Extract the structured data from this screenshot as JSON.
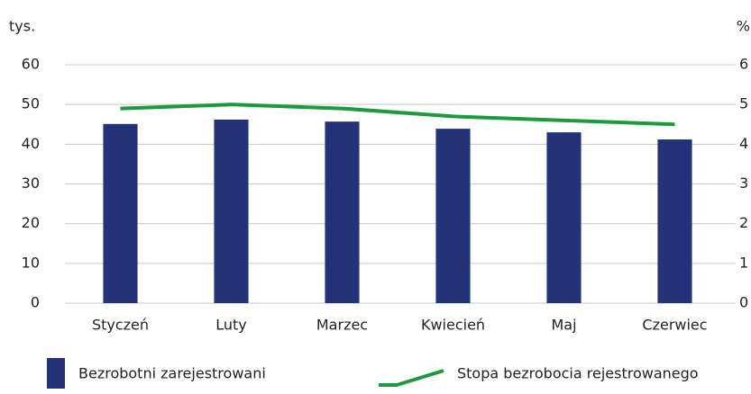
{
  "chart_data": {
    "type": "bar_line",
    "y_unit_label": "tys.",
    "y2_unit_label": "%",
    "categories": [
      "Styczeń",
      "Luty",
      "Marzec",
      "Kwiecień",
      "Maj",
      "Czerwiec"
    ],
    "series": [
      {
        "name": "Bezrobotni zarejestrowani",
        "type": "bar",
        "color": "#243378",
        "values": [
          45.1,
          46.2,
          45.7,
          43.9,
          43.0,
          41.2
        ]
      },
      {
        "name": "Stopa bezrobocia rejestrowanego",
        "type": "line",
        "axis": "y2",
        "color": "#1e9a3e",
        "values": [
          4.9,
          5.0,
          4.9,
          4.7,
          4.6,
          4.5
        ]
      }
    ],
    "ylim": [
      0,
      60
    ],
    "yticks": [
      0,
      10,
      20,
      30,
      40,
      50,
      60
    ],
    "y2lim": [
      0,
      6
    ],
    "y2ticks": [
      0,
      1,
      2,
      3,
      4,
      5,
      6
    ],
    "grid": true
  }
}
